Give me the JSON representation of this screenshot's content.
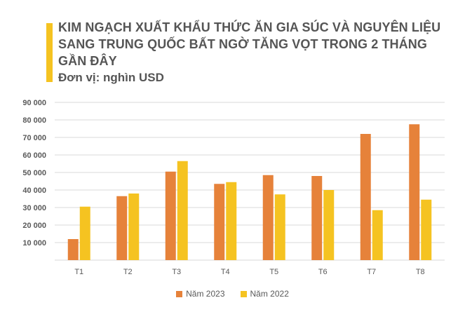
{
  "title": "KIM NGẠCH XUẤT KHẨU THỨC ĂN GIA SÚC VÀ NGUYÊN LIỆU SANG TRUNG QUỐC BẤT NGỜ TĂNG VỌT TRONG 2 THÁNG GẦN ĐÂY",
  "unit_label": "Đơn vị: nghìn USD",
  "colors": {
    "accent": "#f5c321",
    "series_2023": "#e6823a",
    "series_2022": "#f5c321",
    "grid": "#d9d9d9"
  },
  "chart_data": {
    "type": "bar",
    "title": "KIM NGẠCH XUẤT KHẨU THỨC ĂN GIA SÚC VÀ NGUYÊN LIỆU SANG TRUNG QUỐC BẤT NGỜ TĂNG VỌT TRONG 2 THÁNG GẦN ĐÂY",
    "ylabel": "Đơn vị: nghìn USD",
    "categories": [
      "T1",
      "T2",
      "T3",
      "T4",
      "T5",
      "T6",
      "T7",
      "T8"
    ],
    "series": [
      {
        "name": "Năm 2023",
        "color": "#e6823a",
        "values": [
          12000,
          36500,
          50500,
          43500,
          48500,
          48000,
          72000,
          77500
        ]
      },
      {
        "name": "Năm 2022",
        "color": "#f5c321",
        "values": [
          30500,
          38000,
          56500,
          44500,
          37500,
          40000,
          28500,
          34500
        ]
      }
    ],
    "ylim": [
      0,
      90000
    ],
    "yticks": [
      "",
      "10 000",
      "20 000",
      "30 000",
      "40 000",
      "50 000",
      "60 000",
      "70 000",
      "80 000",
      "90 000"
    ],
    "grid": true,
    "legend": "bottom"
  }
}
